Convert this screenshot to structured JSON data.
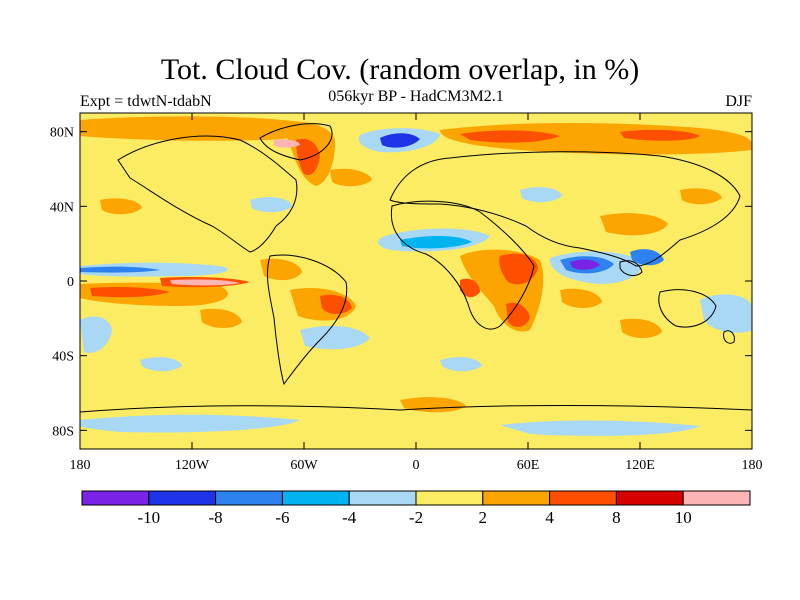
{
  "title": "Tot. Cloud Cov. (random overlap, in %)",
  "subtitle": "056kyr BP - HadCM3M2.1",
  "left_label": "Expt = tdwtN-tdabN",
  "right_label": "DJF",
  "map": {
    "lon_ticks": [
      "180",
      "120W",
      "60W",
      "0",
      "60E",
      "120E",
      "180"
    ],
    "lat_ticks": [
      "80N",
      "40N",
      "0",
      "40S",
      "80S"
    ]
  },
  "colorbar": {
    "colors": [
      "#7a22e6",
      "#1e32e6",
      "#2e82f0",
      "#00b4f0",
      "#a8d8f4",
      "#fcec64",
      "#fca400",
      "#fc5000",
      "#d60000",
      "#fcb4b4"
    ],
    "labels": [
      "-10",
      "-8",
      "-6",
      "-4",
      "-2",
      "2",
      "4",
      "8",
      "10"
    ]
  }
}
